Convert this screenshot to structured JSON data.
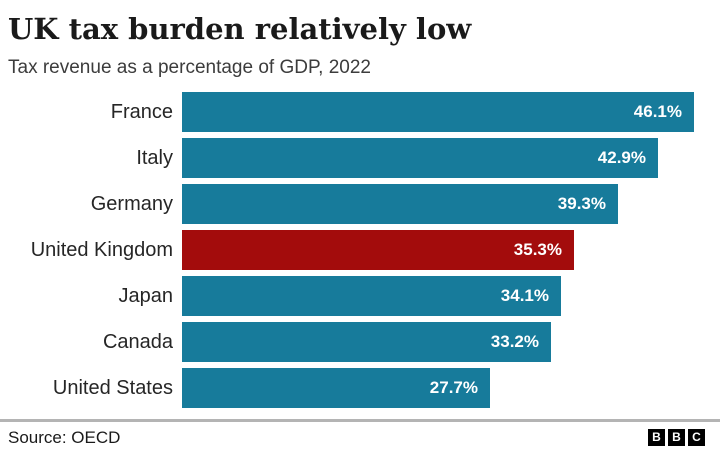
{
  "title": "UK tax burden relatively low",
  "subtitle": "Tax revenue as a percentage of GDP, 2022",
  "source": "Source: OECD",
  "logo": {
    "letters": [
      "B",
      "B",
      "C"
    ]
  },
  "colors": {
    "bar": "#177b9b",
    "highlight": "#a30c0c",
    "value_label": "#ffffff",
    "title_text": "#1a1a1a",
    "subtitle_text": "#3c3c3c",
    "label_text": "#262626",
    "source_text": "#1a1a1a",
    "divider": "#b4b4b4",
    "logo_bg": "#000000",
    "logo_letter": "#ffffff"
  },
  "chart_data": {
    "type": "bar",
    "orientation": "horizontal",
    "title": "UK tax burden relatively low",
    "subtitle": "Tax revenue as a percentage of GDP, 2022",
    "categories": [
      "France",
      "Italy",
      "Germany",
      "United Kingdom",
      "Japan",
      "Canada",
      "United States"
    ],
    "values": [
      46.1,
      42.9,
      39.3,
      35.3,
      34.1,
      33.2,
      27.7
    ],
    "value_labels": [
      "46.1%",
      "42.9%",
      "39.3%",
      "35.3%",
      "34.1%",
      "33.2%",
      "27.7%"
    ],
    "unit": "%",
    "highlight_category": "United Kingdom",
    "xlim": [
      0,
      46.1
    ],
    "grid": false,
    "legend": "none",
    "source": "OECD"
  }
}
